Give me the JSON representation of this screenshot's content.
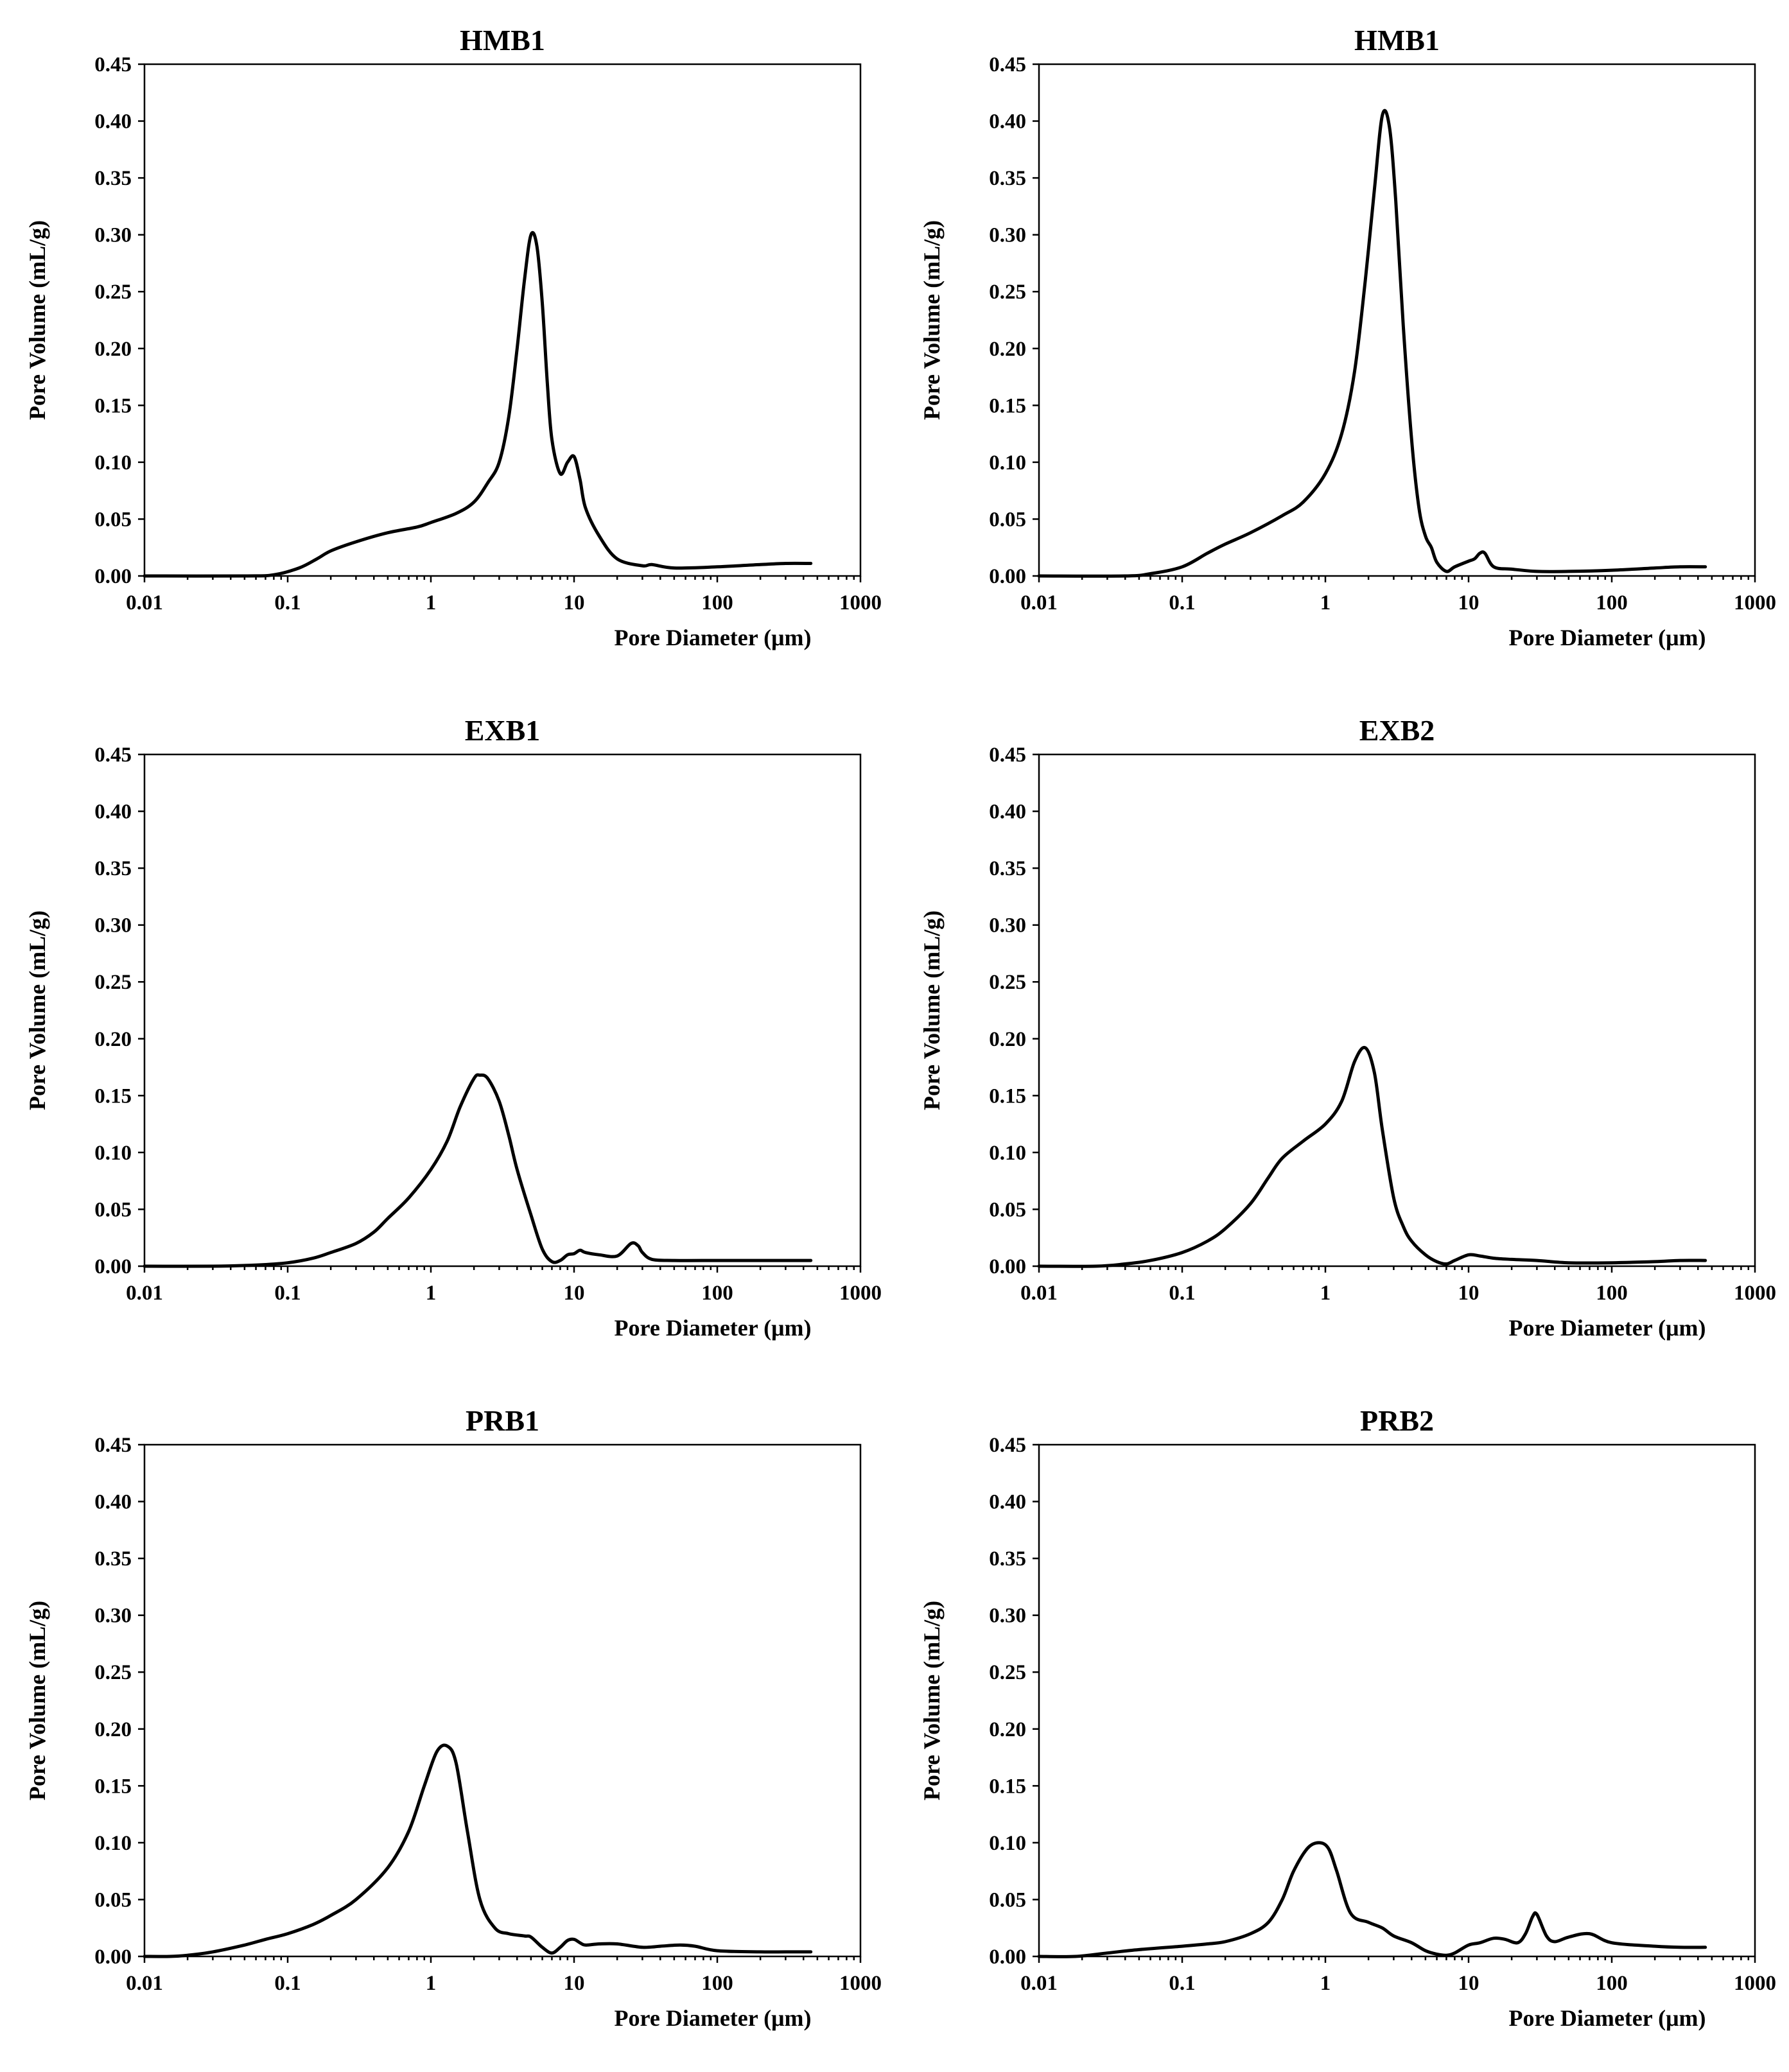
{
  "chart_data": [
    {
      "type": "line",
      "title": "HMB1",
      "xlabel": "Pore Diameter (μm)",
      "ylabel": "Pore Volume (mL/g)",
      "xscale": "log",
      "xlim": [
        0.01,
        1000
      ],
      "ylim": [
        0,
        0.45
      ],
      "xticks": [
        "0.01",
        "0.1",
        "1",
        "10",
        "100",
        "1000"
      ],
      "yticks": [
        "0.00",
        "0.05",
        "0.10",
        "0.15",
        "0.20",
        "0.25",
        "0.30",
        "0.35",
        "0.40",
        "0.45"
      ],
      "series": [
        {
          "name": "HMB1",
          "x": [
            0.01,
            0.05,
            0.08,
            0.12,
            0.16,
            0.2,
            0.3,
            0.5,
            0.8,
            1,
            1.5,
            2,
            2.5,
            3,
            3.5,
            4,
            4.5,
            5,
            5.5,
            6,
            6.5,
            7,
            8,
            9,
            10,
            11,
            12,
            15,
            20,
            30,
            35,
            50,
            100,
            200,
            300,
            450
          ],
          "y": [
            0,
            0,
            0.001,
            0.007,
            0.015,
            0.022,
            0.03,
            0.038,
            0.043,
            0.047,
            0.055,
            0.065,
            0.082,
            0.1,
            0.14,
            0.2,
            0.26,
            0.3,
            0.29,
            0.24,
            0.17,
            0.12,
            0.09,
            0.1,
            0.105,
            0.085,
            0.06,
            0.035,
            0.015,
            0.009,
            0.01,
            0.007,
            0.008,
            0.01,
            0.011,
            0.011
          ]
        }
      ]
    },
    {
      "type": "line",
      "title": "HMB1",
      "xlabel": "Pore Diameter (μm)",
      "ylabel": "Pore Volume (mL/g)",
      "xscale": "log",
      "xlim": [
        0.01,
        1000
      ],
      "ylim": [
        0,
        0.45
      ],
      "xticks": [
        "0.01",
        "0.1",
        "1",
        "10",
        "100",
        "1000"
      ],
      "yticks": [
        "0.00",
        "0.05",
        "0.10",
        "0.15",
        "0.20",
        "0.25",
        "0.30",
        "0.35",
        "0.40",
        "0.45"
      ],
      "series": [
        {
          "name": "HMB1",
          "x": [
            0.01,
            0.04,
            0.06,
            0.1,
            0.15,
            0.2,
            0.3,
            0.5,
            0.7,
            1,
            1.3,
            1.6,
            1.9,
            2.2,
            2.5,
            2.8,
            3.1,
            3.5,
            4,
            4.5,
            5,
            5.5,
            6,
            7,
            8,
            10,
            11,
            12,
            13,
            15,
            20,
            30,
            50,
            100,
            200,
            300,
            450
          ],
          "y": [
            0,
            0,
            0.002,
            0.008,
            0.02,
            0.028,
            0.038,
            0.053,
            0.065,
            0.09,
            0.125,
            0.18,
            0.26,
            0.34,
            0.405,
            0.395,
            0.33,
            0.22,
            0.12,
            0.06,
            0.035,
            0.025,
            0.012,
            0.004,
            0.008,
            0.013,
            0.015,
            0.02,
            0.02,
            0.008,
            0.006,
            0.004,
            0.004,
            0.005,
            0.007,
            0.008,
            0.008
          ]
        }
      ]
    },
    {
      "type": "line",
      "title": "EXB1",
      "xlabel": "Pore Diameter (μm)",
      "ylabel": "Pore Volume (mL/g)",
      "xscale": "log",
      "xlim": [
        0.01,
        1000
      ],
      "ylim": [
        0,
        0.45
      ],
      "xticks": [
        "0.01",
        "0.1",
        "1",
        "10",
        "100",
        "1000"
      ],
      "yticks": [
        "0.00",
        "0.05",
        "0.10",
        "0.15",
        "0.20",
        "0.25",
        "0.30",
        "0.35",
        "0.40",
        "0.45"
      ],
      "series": [
        {
          "name": "EXB1",
          "x": [
            0.01,
            0.03,
            0.06,
            0.1,
            0.15,
            0.2,
            0.3,
            0.4,
            0.5,
            0.7,
            1,
            1.3,
            1.6,
            2,
            2.2,
            2.5,
            3,
            3.5,
            4,
            5,
            6,
            7,
            8,
            9,
            10,
            11,
            12,
            15,
            20,
            25,
            28,
            30,
            35,
            50,
            100,
            200,
            300,
            450
          ],
          "y": [
            0,
            0,
            0.001,
            0.003,
            0.007,
            0.012,
            0.02,
            0.03,
            0.042,
            0.06,
            0.085,
            0.11,
            0.14,
            0.165,
            0.168,
            0.165,
            0.145,
            0.115,
            0.085,
            0.045,
            0.015,
            0.004,
            0.005,
            0.01,
            0.011,
            0.014,
            0.012,
            0.01,
            0.009,
            0.02,
            0.018,
            0.012,
            0.006,
            0.005,
            0.005,
            0.005,
            0.005,
            0.005
          ]
        }
      ]
    },
    {
      "type": "line",
      "title": "EXB2",
      "xlabel": "Pore Diameter (μm)",
      "ylabel": "Pore Volume (mL/g)",
      "xscale": "log",
      "xlim": [
        0.01,
        1000
      ],
      "ylim": [
        0,
        0.45
      ],
      "xticks": [
        "0.01",
        "0.1",
        "1",
        "10",
        "100",
        "1000"
      ],
      "yticks": [
        "0.00",
        "0.05",
        "0.10",
        "0.15",
        "0.20",
        "0.25",
        "0.30",
        "0.35",
        "0.40",
        "0.45"
      ],
      "series": [
        {
          "name": "EXB2",
          "x": [
            0.01,
            0.025,
            0.04,
            0.06,
            0.1,
            0.15,
            0.2,
            0.3,
            0.4,
            0.5,
            0.7,
            1,
            1.3,
            1.6,
            1.9,
            2.2,
            2.5,
            3,
            3.5,
            4,
            5,
            6,
            7,
            8,
            10,
            12,
            15,
            20,
            30,
            50,
            100,
            200,
            300,
            450
          ],
          "y": [
            0,
            0,
            0.002,
            0.005,
            0.012,
            0.022,
            0.033,
            0.055,
            0.078,
            0.095,
            0.11,
            0.125,
            0.145,
            0.18,
            0.192,
            0.17,
            0.12,
            0.06,
            0.035,
            0.022,
            0.01,
            0.004,
            0.002,
            0.005,
            0.01,
            0.009,
            0.007,
            0.006,
            0.005,
            0.003,
            0.003,
            0.004,
            0.005,
            0.005
          ]
        }
      ]
    },
    {
      "type": "line",
      "title": "PRB1",
      "xlabel": "Pore Diameter (μm)",
      "ylabel": "Pore Volume (mL/g)",
      "xscale": "log",
      "xlim": [
        0.01,
        1000
      ],
      "ylim": [
        0,
        0.45
      ],
      "xticks": [
        "0.01",
        "0.1",
        "1",
        "10",
        "100",
        "1000"
      ],
      "yticks": [
        "0.00",
        "0.05",
        "0.10",
        "0.15",
        "0.20",
        "0.25",
        "0.30",
        "0.35",
        "0.40",
        "0.45"
      ],
      "series": [
        {
          "name": "PRB1",
          "x": [
            0.01,
            0.015,
            0.02,
            0.03,
            0.05,
            0.07,
            0.1,
            0.15,
            0.2,
            0.3,
            0.5,
            0.7,
            0.9,
            1.1,
            1.3,
            1.5,
            1.8,
            2.2,
            2.8,
            3.5,
            4.5,
            5,
            6,
            7,
            8,
            9,
            10,
            11,
            12,
            15,
            20,
            30,
            40,
            55,
            70,
            100,
            200,
            300,
            450
          ],
          "y": [
            0,
            0,
            0.001,
            0.004,
            0.01,
            0.015,
            0.02,
            0.028,
            0.036,
            0.05,
            0.078,
            0.11,
            0.15,
            0.18,
            0.185,
            0.17,
            0.11,
            0.05,
            0.025,
            0.02,
            0.018,
            0.017,
            0.008,
            0.003,
            0.008,
            0.014,
            0.015,
            0.012,
            0.01,
            0.011,
            0.011,
            0.008,
            0.009,
            0.01,
            0.009,
            0.005,
            0.004,
            0.004,
            0.004
          ]
        }
      ]
    },
    {
      "type": "line",
      "title": "PRB2",
      "xlabel": "Pore Diameter (μm)",
      "ylabel": "Pore Volume (mL/g)",
      "xscale": "log",
      "xlim": [
        0.01,
        1000
      ],
      "ylim": [
        0,
        0.45
      ],
      "xticks": [
        "0.01",
        "0.1",
        "1",
        "10",
        "100",
        "1000"
      ],
      "yticks": [
        "0.00",
        "0.05",
        "0.10",
        "0.15",
        "0.20",
        "0.25",
        "0.30",
        "0.35",
        "0.40",
        "0.45"
      ],
      "series": [
        {
          "name": "PRB2",
          "x": [
            0.01,
            0.018,
            0.03,
            0.05,
            0.1,
            0.15,
            0.2,
            0.3,
            0.4,
            0.5,
            0.6,
            0.75,
            0.9,
            1.05,
            1.2,
            1.5,
            2,
            2.5,
            3,
            4,
            5,
            6,
            7,
            8,
            10,
            12,
            15,
            18,
            22,
            25,
            28,
            30,
            35,
            40,
            50,
            70,
            100,
            200,
            300,
            450
          ],
          "y": [
            0,
            0,
            0.003,
            0.006,
            0.009,
            0.011,
            0.013,
            0.02,
            0.03,
            0.05,
            0.075,
            0.095,
            0.1,
            0.095,
            0.075,
            0.038,
            0.03,
            0.025,
            0.018,
            0.012,
            0.005,
            0.002,
            0.001,
            0.003,
            0.01,
            0.012,
            0.016,
            0.015,
            0.012,
            0.02,
            0.035,
            0.037,
            0.018,
            0.013,
            0.017,
            0.02,
            0.012,
            0.009,
            0.008,
            0.008
          ]
        }
      ]
    }
  ]
}
